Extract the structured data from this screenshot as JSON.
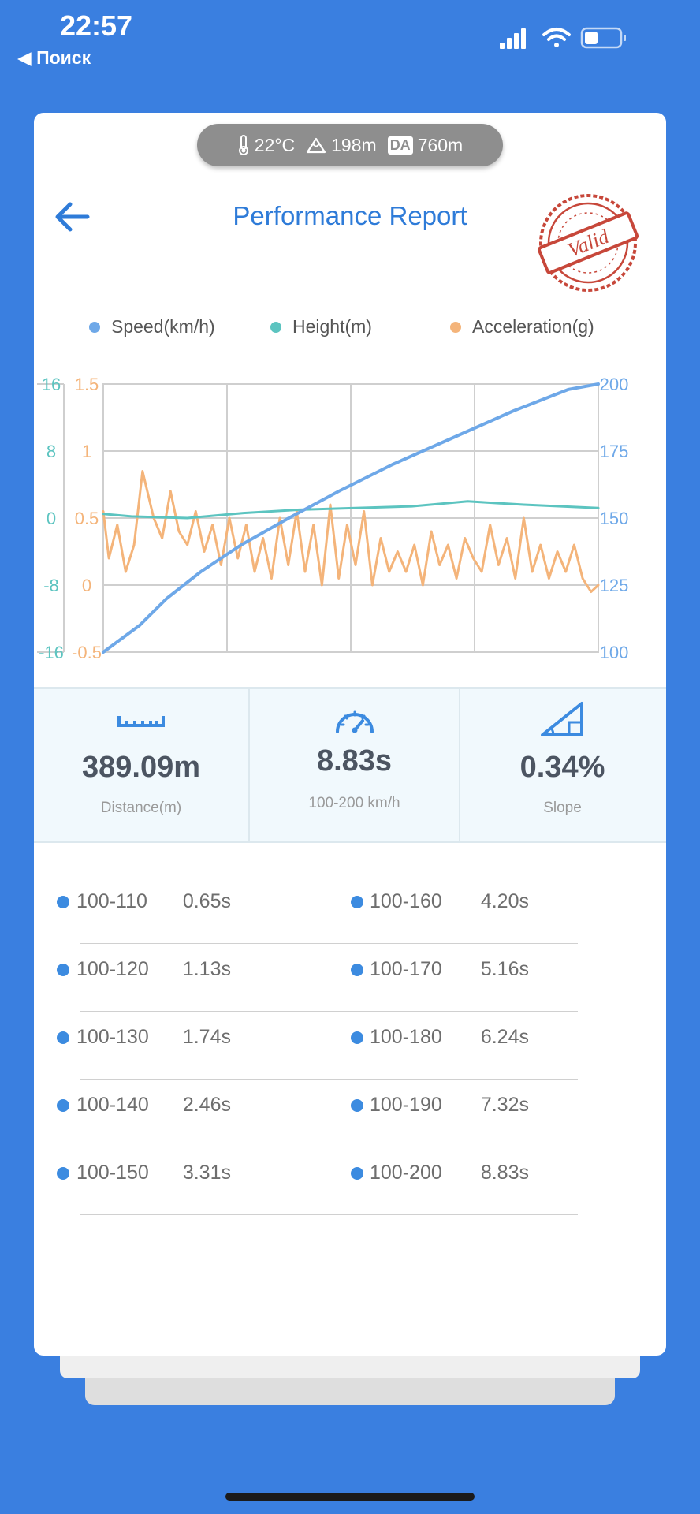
{
  "status_bar": {
    "time": "22:57",
    "back_label": "◀ Поиск",
    "icons": [
      "signal-icon",
      "wifi-icon",
      "battery-icon"
    ]
  },
  "conditions": {
    "temperature": "22°C",
    "altitude": "198m",
    "da_badge": "DA",
    "density_altitude": "760m"
  },
  "header": {
    "title": "Performance Report",
    "stamp_text": "Valid"
  },
  "colors": {
    "background": "#3A7FE0",
    "speed": "#6EA8E8",
    "height": "#5CC4C0",
    "acceleration": "#F4B47A",
    "accent": "#2E7BD8"
  },
  "chart_data": {
    "type": "line",
    "legend": [
      "Speed(km/h)",
      "Height(m)",
      "Acceleration(g)"
    ],
    "axes": {
      "height_ticks": [
        "16",
        "8",
        "0",
        "-8",
        "-16"
      ],
      "height_range": [
        -16,
        16
      ],
      "acceleration_ticks": [
        "1.5",
        "1",
        "0.5",
        "0",
        "-0.5"
      ],
      "acceleration_range": [
        -0.5,
        1.5
      ],
      "speed_ticks": [
        "200",
        "175",
        "150",
        "125",
        "100"
      ],
      "speed_range": [
        100,
        200
      ]
    },
    "grid": true,
    "x_range": [
      0,
      8.83
    ],
    "series": [
      {
        "name": "Speed(km/h)",
        "axis": "speed",
        "x": [
          0,
          0.65,
          1.13,
          1.74,
          2.46,
          3.31,
          4.2,
          5.16,
          6.24,
          7.32,
          8.3,
          8.83
        ],
        "y": [
          100,
          110,
          120,
          130,
          140,
          150,
          160,
          170,
          180,
          190,
          198,
          200
        ]
      },
      {
        "name": "Height(m)",
        "axis": "height",
        "x": [
          0,
          0.5,
          1.5,
          2.5,
          3.5,
          4.5,
          5.5,
          6.5,
          7.5,
          8.83
        ],
        "y": [
          0.5,
          0.2,
          0,
          0.6,
          1.0,
          1.2,
          1.4,
          2.0,
          1.6,
          1.2
        ]
      },
      {
        "name": "Acceleration(g)",
        "axis": "acceleration",
        "x": [
          0,
          0.1,
          0.25,
          0.4,
          0.55,
          0.7,
          0.9,
          1.05,
          1.2,
          1.35,
          1.5,
          1.65,
          1.8,
          1.95,
          2.1,
          2.25,
          2.4,
          2.55,
          2.7,
          2.85,
          3.0,
          3.15,
          3.3,
          3.45,
          3.6,
          3.75,
          3.9,
          4.05,
          4.2,
          4.35,
          4.5,
          4.65,
          4.8,
          4.95,
          5.1,
          5.25,
          5.4,
          5.55,
          5.7,
          5.85,
          6.0,
          6.15,
          6.3,
          6.45,
          6.6,
          6.75,
          6.9,
          7.05,
          7.2,
          7.35,
          7.5,
          7.65,
          7.8,
          7.95,
          8.1,
          8.25,
          8.4,
          8.55,
          8.7,
          8.83
        ],
        "y": [
          0.55,
          0.2,
          0.45,
          0.1,
          0.3,
          0.85,
          0.5,
          0.35,
          0.7,
          0.4,
          0.3,
          0.55,
          0.25,
          0.45,
          0.15,
          0.5,
          0.2,
          0.45,
          0.1,
          0.35,
          0.05,
          0.5,
          0.15,
          0.55,
          0.1,
          0.45,
          0.0,
          0.6,
          0.05,
          0.45,
          0.15,
          0.55,
          0.0,
          0.35,
          0.1,
          0.25,
          0.1,
          0.3,
          0.0,
          0.4,
          0.15,
          0.3,
          0.05,
          0.35,
          0.2,
          0.1,
          0.45,
          0.15,
          0.35,
          0.05,
          0.5,
          0.1,
          0.3,
          0.05,
          0.25,
          0.1,
          0.3,
          0.05,
          -0.05,
          0.0
        ]
      }
    ]
  },
  "stats": {
    "distance_value": "389.09m",
    "distance_label": "Distance(m)",
    "time_value": "8.83s",
    "time_label": "100-200 km/h",
    "slope_value": "0.34%",
    "slope_label": "Slope"
  },
  "splits": [
    {
      "left_name": "100-110",
      "left_time": "0.65s",
      "right_name": "100-160",
      "right_time": "4.20s"
    },
    {
      "left_name": "100-120",
      "left_time": "1.13s",
      "right_name": "100-170",
      "right_time": "5.16s"
    },
    {
      "left_name": "100-130",
      "left_time": "1.74s",
      "right_name": "100-180",
      "right_time": "6.24s"
    },
    {
      "left_name": "100-140",
      "left_time": "2.46s",
      "right_name": "100-190",
      "right_time": "7.32s"
    },
    {
      "left_name": "100-150",
      "left_time": "3.31s",
      "right_name": "100-200",
      "right_time": "8.83s"
    }
  ]
}
